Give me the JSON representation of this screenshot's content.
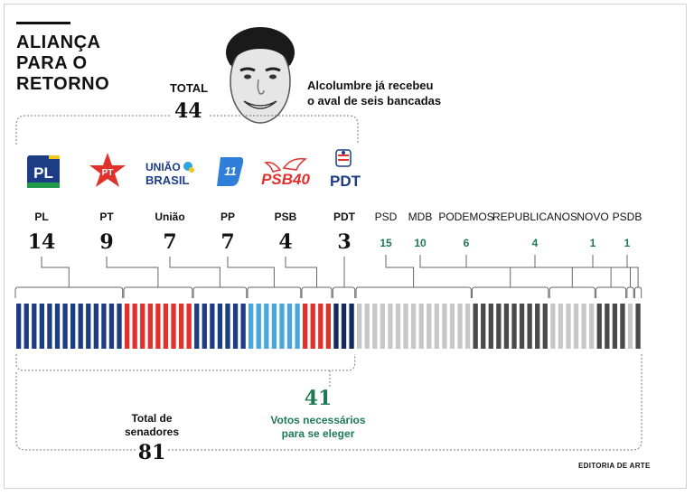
{
  "title_lines": [
    "ALIANÇA",
    "PARA O",
    "RETORNO"
  ],
  "total_label": "TOTAL",
  "total_value": "44",
  "quote_lines": [
    "Alcolumbre já recebeu",
    "o aval de seis bancadas"
  ],
  "colors": {
    "blue": "#1d3c86",
    "red": "#e0312d",
    "light_blue": "#48a6df",
    "navy": "#132a5c",
    "light_gray": "#c7c7c7",
    "dark_gray": "#4a4a4a",
    "green": "#1e7a54"
  },
  "chart_data": {
    "type": "bar",
    "title": "ALIANÇA PARA O RETORNO",
    "categories": [
      "PL",
      "PT",
      "União",
      "PP",
      "PSB",
      "PDT",
      "PSD",
      "MDB",
      "PODEMOS",
      "REPUBLICANOS",
      "NOVO",
      "PSDB"
    ],
    "values": [
      14,
      9,
      7,
      7,
      4,
      3,
      15,
      10,
      6,
      4,
      1,
      1
    ],
    "alliance": [
      true,
      true,
      true,
      true,
      true,
      true,
      false,
      false,
      false,
      false,
      false,
      false
    ],
    "total_senators": 81,
    "votes_needed": 41,
    "alliance_total": 44
  },
  "party_values": [
    "14",
    "9",
    "7",
    "7",
    "4",
    "3",
    "15",
    "10",
    "6",
    "4",
    "1",
    "1"
  ],
  "logos": {
    "pl": "PL",
    "pt": "PT",
    "uniao_1": "UNIÃO",
    "uniao_2": "BRASIL",
    "pp": "11",
    "psb": "PSB40",
    "pdt": "PDT"
  },
  "needed_value": "41",
  "needed_label_lines": [
    "Votos necessários",
    "para se eleger"
  ],
  "total_senators_label_lines": [
    "Total de",
    "senadores"
  ],
  "total_senators_value": "81",
  "credit": "EDITORIA DE ARTE"
}
